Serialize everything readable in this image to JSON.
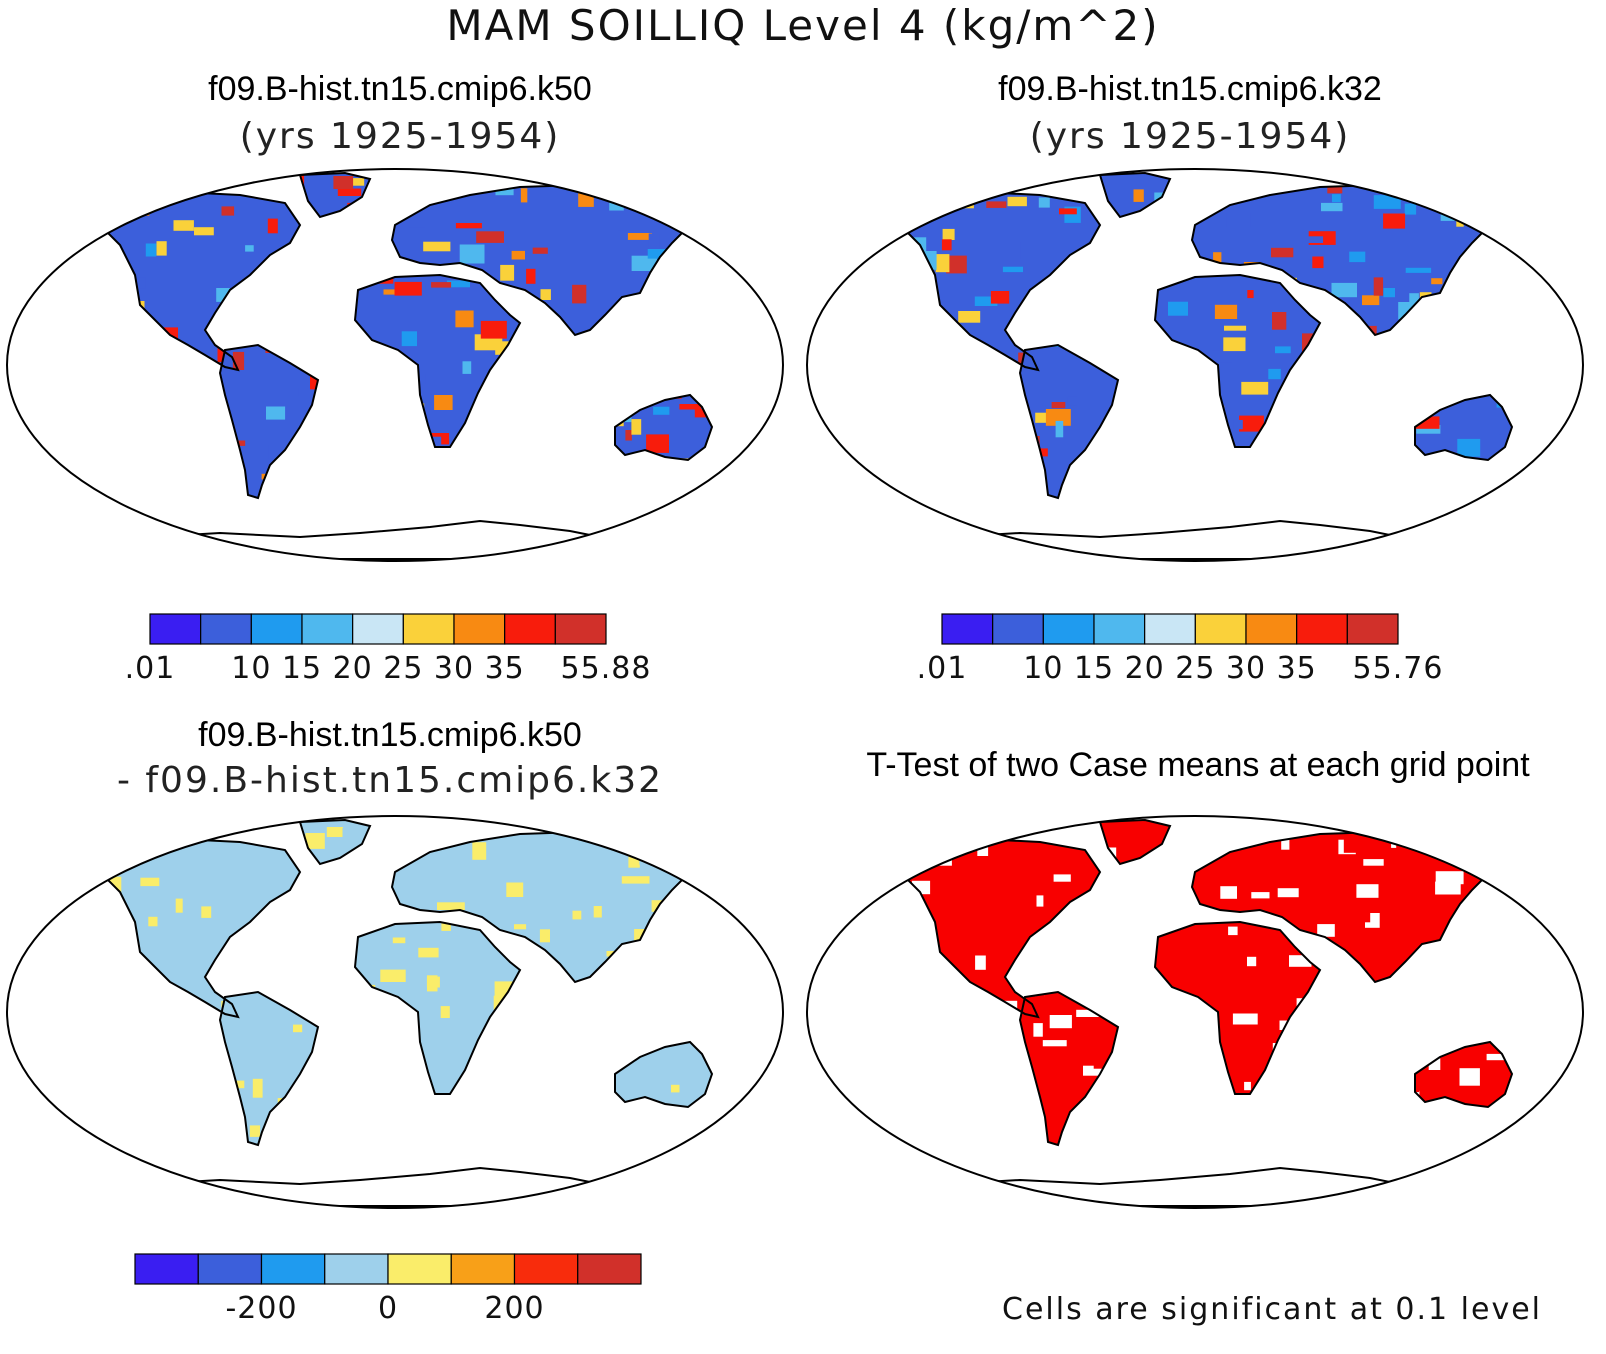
{
  "title": "MAM SOILLIQ Level 4 (kg/m^2)",
  "panels": {
    "a": {
      "title": "f09.B-hist.tn15.cmip6.k50",
      "subtitle": "(yrs 1925-1954)"
    },
    "b": {
      "title": "f09.B-hist.tn15.cmip6.k32",
      "subtitle": "(yrs 1925-1954)"
    },
    "c": {
      "title": "f09.B-hist.tn15.cmip6.k50",
      "subtitle": "- f09.B-hist.tn15.cmip6.k32"
    },
    "d": {
      "title": "T-Test of two Case means at each grid point",
      "note": "Cells are significant at 0.1 level"
    }
  },
  "colorbars": {
    "a": {
      "colors": [
        "#3a1ef2",
        "#3c5fdb",
        "#1f9bef",
        "#4fb8ee",
        "#c9e6f5",
        "#fad13a",
        "#f88a12",
        "#f81c0c",
        "#d1302a"
      ],
      "labels": [
        ".01",
        "10",
        "15",
        "20",
        "25",
        "30",
        "35",
        "55.88"
      ]
    },
    "b": {
      "colors": [
        "#3a1ef2",
        "#3c5fdb",
        "#1f9bef",
        "#4fb8ee",
        "#c9e6f5",
        "#fad13a",
        "#f88a12",
        "#f81c0c",
        "#d1302a"
      ],
      "labels": [
        ".01",
        "10",
        "15",
        "20",
        "25",
        "30",
        "35",
        "55.76"
      ]
    },
    "c": {
      "colors": [
        "#3a1ef2",
        "#3c5fdb",
        "#1f9bef",
        "#9ed0eb",
        "#faed6a",
        "#f8a018",
        "#f82c0c",
        "#d1302a"
      ],
      "labels": [
        "-200",
        "0",
        "200"
      ]
    }
  },
  "map_palettes": {
    "a": [
      "#3c5fdb",
      "#4fb8ee",
      "#1f9bef",
      "#f88a12",
      "#f81c0c",
      "#d1302a",
      "#fad13a"
    ],
    "b": [
      "#3c5fdb",
      "#4fb8ee",
      "#1f9bef",
      "#f88a12",
      "#f81c0c",
      "#d1302a",
      "#fad13a"
    ],
    "c": [
      "#9ed0eb",
      "#faed6a"
    ],
    "d": [
      "#f80000",
      "#ffffff"
    ]
  }
}
